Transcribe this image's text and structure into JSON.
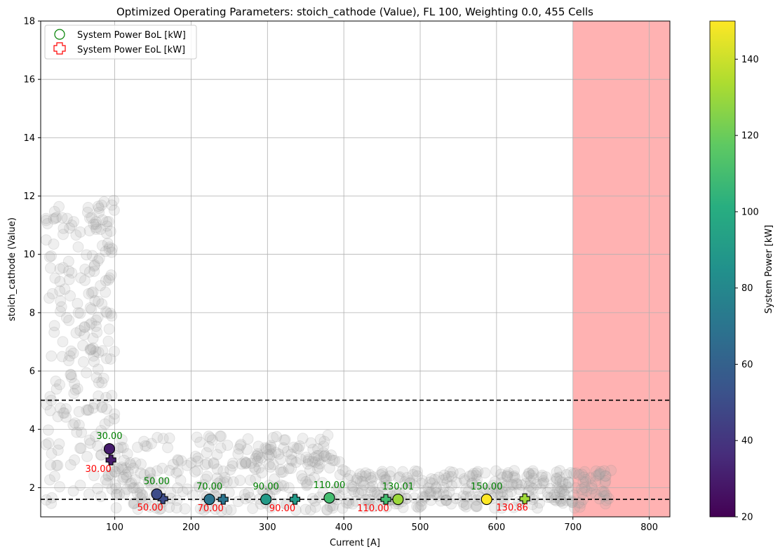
{
  "chart_data": {
    "type": "scatter",
    "title": "Optimized Operating Parameters: stoich_cathode (Value), FL 100, Weighting 0.0, 455 Cells",
    "xlabel": "Current [A]",
    "ylabel": "stoich_cathode (Value)",
    "xlim": [
      3,
      827
    ],
    "ylim": [
      1,
      18
    ],
    "x_ticks": [
      100,
      200,
      300,
      400,
      500,
      600,
      700,
      800
    ],
    "y_ticks": [
      2,
      4,
      6,
      8,
      10,
      12,
      14,
      16,
      18
    ],
    "grid": true,
    "legend_position": "top-left",
    "legend": [
      {
        "label": "System Power BoL [kW]",
        "marker": "circle-open",
        "color": "#008000"
      },
      {
        "label": "System Power EoL [kW]",
        "marker": "plus-open",
        "color": "#ff0000"
      }
    ],
    "bounds": {
      "lower_dashed": 1.6,
      "upper_dashed": 5.0
    },
    "excluded_region": {
      "x_from": 700,
      "x_to": 827,
      "color": "#ff6666"
    },
    "colorbar": {
      "label": "System Power [kW]",
      "min": 20,
      "max": 150,
      "ticks": [
        20,
        40,
        60,
        80,
        100,
        120,
        140
      ],
      "colormap": "viridis"
    },
    "bol_points": [
      {
        "x": 93,
        "y": 3.33,
        "power": 30.0,
        "label": "30.00"
      },
      {
        "x": 155,
        "y": 1.78,
        "power": 50.0,
        "label": "50.00"
      },
      {
        "x": 224,
        "y": 1.6,
        "power": 70.0,
        "label": "70.00"
      },
      {
        "x": 298,
        "y": 1.6,
        "power": 90.0,
        "label": "90.00"
      },
      {
        "x": 381,
        "y": 1.65,
        "power": 110.0,
        "label": "110.00"
      },
      {
        "x": 471,
        "y": 1.6,
        "power": 130.01,
        "label": "130.01"
      },
      {
        "x": 587,
        "y": 1.6,
        "power": 150.0,
        "label": "150.00"
      }
    ],
    "eol_points": [
      {
        "x": 95,
        "y": 2.95,
        "power": 30.0,
        "label": "30.00"
      },
      {
        "x": 163,
        "y": 1.62,
        "power": 50.0,
        "label": "50.00"
      },
      {
        "x": 242,
        "y": 1.6,
        "power": 70.0,
        "label": "70.00"
      },
      {
        "x": 336,
        "y": 1.6,
        "power": 90.0,
        "label": "90.00"
      },
      {
        "x": 455,
        "y": 1.6,
        "power": 110.0,
        "label": "110.00"
      },
      {
        "x": 637,
        "y": 1.62,
        "power": 130.86,
        "label": "130.86"
      }
    ]
  }
}
